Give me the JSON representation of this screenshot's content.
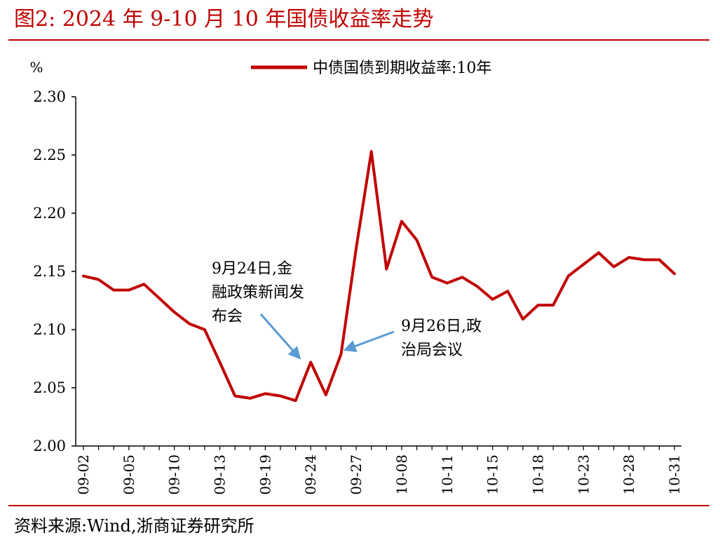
{
  "figure": {
    "title": "图2:  2024 年 9-10 月 10 年国债收益率走势",
    "source": "资料来源:Wind,浙商证券研究所"
  },
  "colors": {
    "accent": "#c00000",
    "series": "#c00000",
    "arrow": "#5b9bd5",
    "axis": "#000000"
  },
  "chart_data": {
    "type": "line",
    "title": "",
    "ylabel": "%",
    "xlabel": "",
    "ylim": [
      2.0,
      2.3
    ],
    "yticks": [
      "2.00",
      "2.05",
      "2.10",
      "2.15",
      "2.20",
      "2.25",
      "2.30"
    ],
    "grid": false,
    "legend_position": "top-center",
    "x_tick_labels": [
      "09-02",
      "09-05",
      "09-10",
      "09-13",
      "09-19",
      "09-24",
      "09-27",
      "10-08",
      "10-11",
      "10-15",
      "10-18",
      "10-23",
      "10-28",
      "10-31"
    ],
    "x": [
      "09-02",
      "09-03",
      "09-04",
      "09-05",
      "09-06",
      "09-09",
      "09-10",
      "09-11",
      "09-12",
      "09-13",
      "09-14",
      "09-18",
      "09-19",
      "09-20",
      "09-23",
      "09-24",
      "09-25",
      "09-26",
      "09-27",
      "09-29",
      "09-30",
      "10-08",
      "10-09",
      "10-10",
      "10-11",
      "10-12",
      "10-14",
      "10-15",
      "10-16",
      "10-17",
      "10-18",
      "10-21",
      "10-22",
      "10-23",
      "10-24",
      "10-25",
      "10-28",
      "10-29",
      "10-30",
      "10-31"
    ],
    "series": [
      {
        "name": "中债国债到期收益率:10年",
        "values": [
          2.146,
          2.143,
          2.134,
          2.134,
          2.139,
          2.127,
          2.115,
          2.105,
          2.1,
          2.072,
          2.043,
          2.041,
          2.045,
          2.043,
          2.039,
          2.072,
          2.044,
          2.079,
          2.17,
          2.253,
          2.152,
          2.193,
          2.177,
          2.145,
          2.14,
          2.145,
          2.137,
          2.126,
          2.133,
          2.109,
          2.121,
          2.121,
          2.146,
          2.156,
          2.166,
          2.154,
          2.162,
          2.16,
          2.16,
          2.148
        ]
      }
    ],
    "annotations": [
      {
        "lines": [
          "9月24日,金",
          "融政策新闻发",
          "布会"
        ],
        "x": "09-24"
      },
      {
        "lines": [
          "9月26日,政",
          "治局会议"
        ],
        "x": "09-26"
      }
    ]
  }
}
